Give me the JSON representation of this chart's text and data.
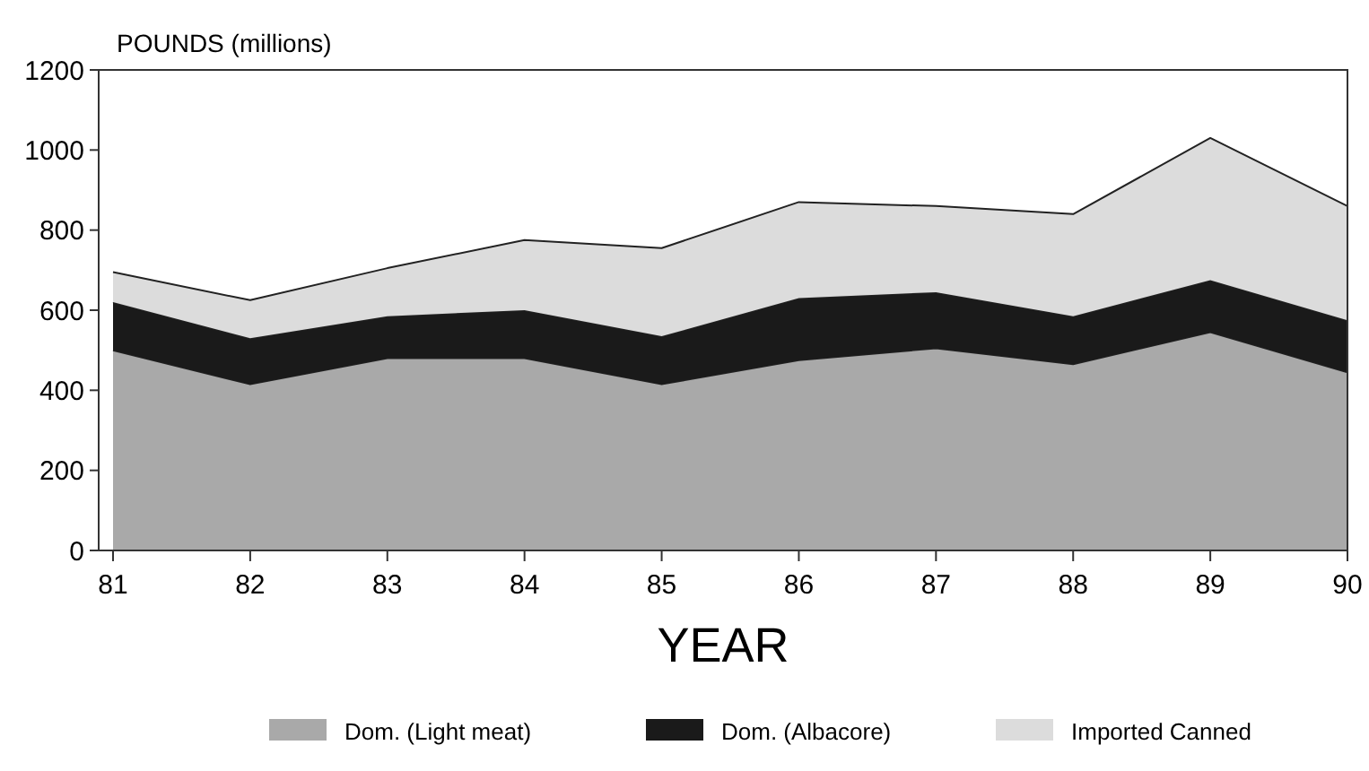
{
  "chart_data": {
    "type": "area",
    "stacked": true,
    "ylabel": "POUNDS (millions)",
    "xlabel": "YEAR",
    "categories": [
      "81",
      "82",
      "83",
      "84",
      "85",
      "86",
      "87",
      "88",
      "89",
      "90"
    ],
    "series": [
      {
        "name": "Dom. (Light meat)",
        "color": "#a9a9a9",
        "values": [
          500,
          415,
          480,
          480,
          415,
          475,
          505,
          465,
          545,
          445
        ]
      },
      {
        "name": "Dom. (Albacore)",
        "color": "#1a1a1a",
        "values": [
          120,
          115,
          105,
          120,
          120,
          155,
          140,
          120,
          130,
          130
        ]
      },
      {
        "name": "Imported Canned",
        "color": "#dcdcdc",
        "values": [
          75,
          95,
          120,
          175,
          220,
          240,
          215,
          255,
          355,
          285
        ]
      }
    ],
    "ylim": [
      0,
      1200
    ],
    "yticks": [
      0,
      200,
      400,
      600,
      800,
      1000,
      1200
    ],
    "grid": false,
    "legend": "bottom"
  }
}
